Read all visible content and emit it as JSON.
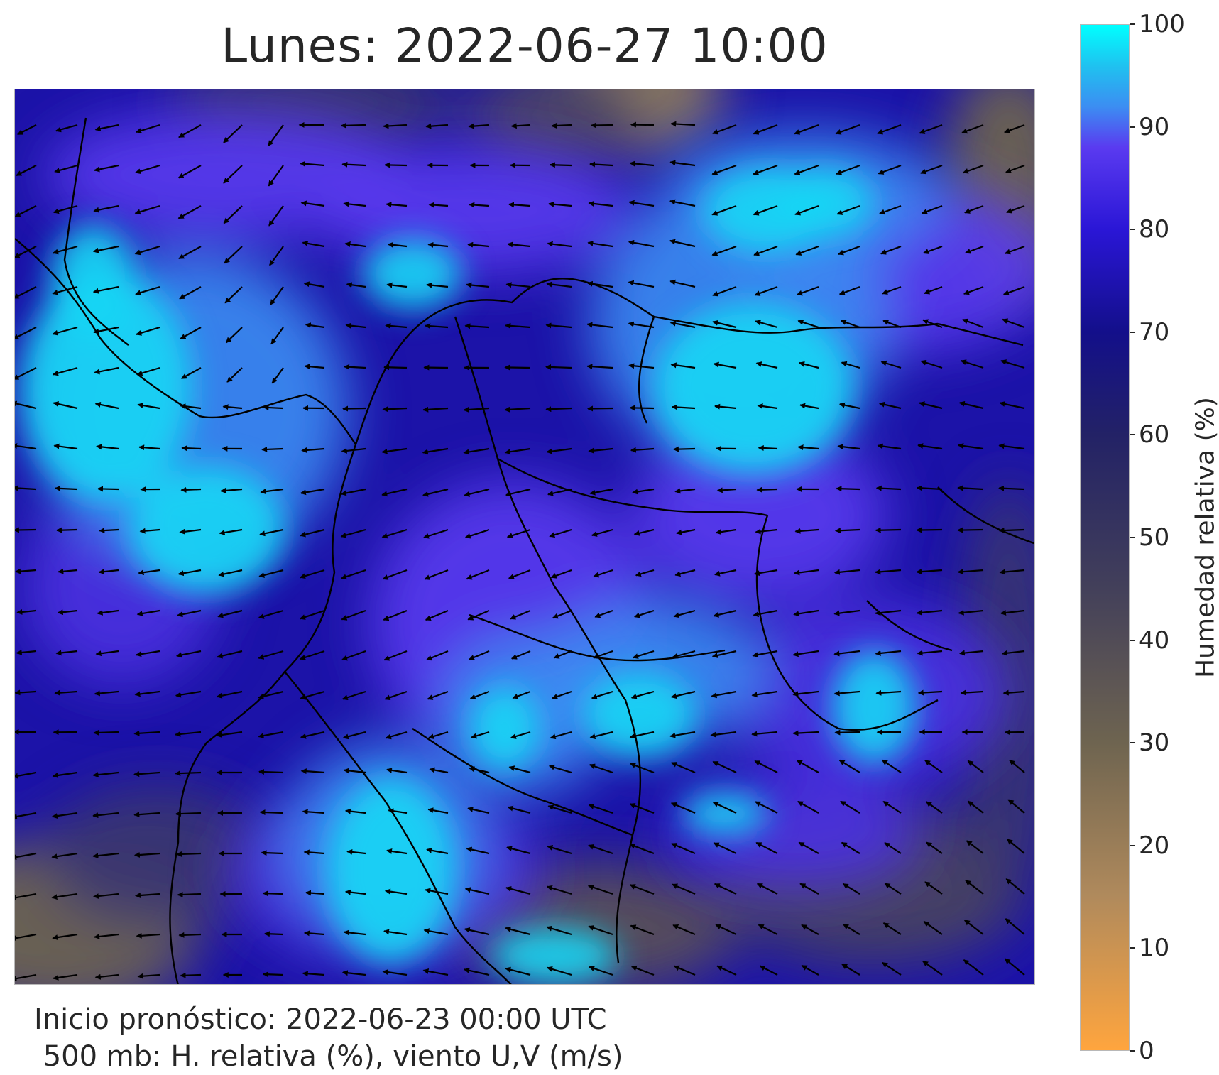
{
  "title": "Lunes: 2022-06-27 10:00",
  "footer": {
    "line1": "Inicio pronóstico: 2022-06-23 00:00 UTC",
    "line2": " 500 mb: H. relativa (%), viento U,V (m/s)"
  },
  "colorbar": {
    "label": "Humedad relativa (%)",
    "ticks": [
      "100",
      "90",
      "80",
      "70",
      "60",
      "50",
      "40",
      "30",
      "20",
      "10",
      "0"
    ],
    "min": 0,
    "max": 100,
    "colors": {
      "0": "#ffa53e",
      "15": "#b08a5c",
      "30": "#6e6450",
      "45": "#43405a",
      "60": "#232266",
      "70": "#130f8a",
      "80": "#2a16d6",
      "88": "#5a3af0",
      "92": "#3c8df2",
      "96": "#1fc2f0",
      "100": "#00ffff"
    }
  },
  "map": {
    "field": "relative humidity 500 mb",
    "overlay": "wind vectors U,V",
    "region": "Colombia and surroundings"
  }
}
